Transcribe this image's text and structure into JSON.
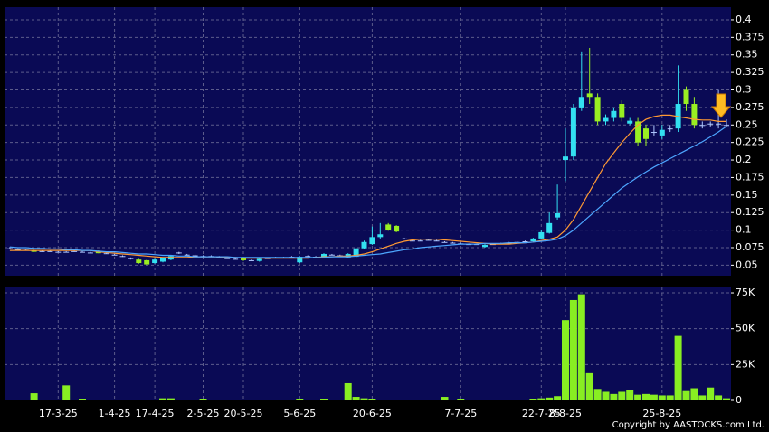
{
  "chart_data": [
    {
      "type": "candlestick",
      "open": [
        0.074,
        0.073,
        0.072,
        0.071,
        0.07,
        0.07,
        0.069,
        0.069,
        0.07,
        0.069,
        0.068,
        0.07,
        0.067,
        0.065,
        0.063,
        0.06,
        0.058,
        0.057,
        0.053,
        0.055,
        0.058,
        0.068,
        0.065,
        0.064,
        0.063,
        0.063,
        0.062,
        0.06,
        0.059,
        0.06,
        0.057,
        0.056,
        0.06,
        0.061,
        0.061,
        0.062,
        0.054,
        0.063,
        0.062,
        0.062,
        0.065,
        0.064,
        0.061,
        0.062,
        0.074,
        0.08,
        0.09,
        0.108,
        0.106,
        0.088,
        0.085,
        0.085,
        0.086,
        0.085,
        0.083,
        0.082,
        0.081,
        0.08,
        0.08,
        0.076,
        0.08,
        0.081,
        0.082,
        0.083,
        0.084,
        0.084,
        0.088,
        0.096,
        0.118,
        0.2,
        0.205,
        0.275,
        0.295,
        0.29,
        0.255,
        0.26,
        0.28,
        0.252,
        0.255,
        0.245,
        0.24,
        0.235,
        0.245,
        0.245,
        0.3,
        0.28,
        0.25,
        0.252,
        0.252,
        0.25
      ],
      "high": [
        0.076,
        0.074,
        0.073,
        0.072,
        0.071,
        0.071,
        0.07,
        0.07,
        0.071,
        0.07,
        0.069,
        0.071,
        0.068,
        0.066,
        0.064,
        0.061,
        0.059,
        0.058,
        0.059,
        0.061,
        0.064,
        0.069,
        0.066,
        0.065,
        0.064,
        0.064,
        0.063,
        0.061,
        0.06,
        0.061,
        0.058,
        0.06,
        0.061,
        0.062,
        0.062,
        0.063,
        0.063,
        0.064,
        0.063,
        0.067,
        0.066,
        0.065,
        0.067,
        0.075,
        0.085,
        0.105,
        0.11,
        0.11,
        0.107,
        0.089,
        0.086,
        0.086,
        0.087,
        0.086,
        0.084,
        0.083,
        0.082,
        0.081,
        0.081,
        0.08,
        0.081,
        0.082,
        0.083,
        0.084,
        0.085,
        0.089,
        0.1,
        0.125,
        0.165,
        0.245,
        0.28,
        0.355,
        0.36,
        0.295,
        0.265,
        0.275,
        0.285,
        0.26,
        0.26,
        0.25,
        0.25,
        0.25,
        0.25,
        0.335,
        0.305,
        0.29,
        0.255,
        0.255,
        0.3,
        0.258
      ],
      "low": [
        0.073,
        0.072,
        0.071,
        0.069,
        0.069,
        0.069,
        0.068,
        0.068,
        0.069,
        0.068,
        0.067,
        0.067,
        0.066,
        0.064,
        0.062,
        0.058,
        0.052,
        0.05,
        0.052,
        0.054,
        0.057,
        0.066,
        0.064,
        0.063,
        0.062,
        0.062,
        0.061,
        0.059,
        0.058,
        0.056,
        0.056,
        0.055,
        0.059,
        0.06,
        0.06,
        0.061,
        0.053,
        0.062,
        0.061,
        0.061,
        0.064,
        0.063,
        0.06,
        0.061,
        0.073,
        0.079,
        0.088,
        0.099,
        0.097,
        0.087,
        0.084,
        0.084,
        0.085,
        0.084,
        0.082,
        0.081,
        0.08,
        0.079,
        0.079,
        0.075,
        0.079,
        0.08,
        0.081,
        0.082,
        0.083,
        0.083,
        0.087,
        0.095,
        0.115,
        0.17,
        0.2,
        0.27,
        0.28,
        0.25,
        0.25,
        0.255,
        0.255,
        0.25,
        0.22,
        0.22,
        0.235,
        0.23,
        0.24,
        0.24,
        0.27,
        0.245,
        0.245,
        0.248,
        0.245,
        0.248
      ],
      "close": [
        0.074,
        0.073,
        0.072,
        0.069,
        0.07,
        0.07,
        0.069,
        0.069,
        0.07,
        0.069,
        0.068,
        0.067,
        0.067,
        0.065,
        0.063,
        0.06,
        0.053,
        0.051,
        0.058,
        0.06,
        0.063,
        0.068,
        0.065,
        0.064,
        0.063,
        0.063,
        0.062,
        0.06,
        0.059,
        0.057,
        0.057,
        0.059,
        0.06,
        0.061,
        0.061,
        0.062,
        0.062,
        0.063,
        0.062,
        0.066,
        0.065,
        0.064,
        0.066,
        0.074,
        0.083,
        0.09,
        0.094,
        0.1,
        0.098,
        0.088,
        0.085,
        0.085,
        0.086,
        0.085,
        0.083,
        0.082,
        0.081,
        0.08,
        0.08,
        0.079,
        0.08,
        0.081,
        0.082,
        0.083,
        0.084,
        0.088,
        0.097,
        0.11,
        0.124,
        0.205,
        0.275,
        0.29,
        0.29,
        0.255,
        0.26,
        0.27,
        0.26,
        0.256,
        0.225,
        0.23,
        0.24,
        0.243,
        0.245,
        0.28,
        0.28,
        0.25,
        0.25,
        0.252,
        0.252,
        0.25
      ],
      "up_color": "#33e0f0",
      "down_color": "#99ee22",
      "flat_color": "#b0c8ff",
      "series": [
        {
          "type": "line",
          "color": "#ff9933",
          "values": [
            0.071,
            0.071,
            0.071,
            0.071,
            0.071,
            0.071,
            0.071,
            0.071,
            0.071,
            0.071,
            0.071,
            0.069,
            0.068,
            0.067,
            0.066,
            0.065,
            0.064,
            0.063,
            0.062,
            0.061,
            0.061,
            0.061,
            0.061,
            0.062,
            0.062,
            0.062,
            0.062,
            0.061,
            0.061,
            0.06,
            0.06,
            0.06,
            0.06,
            0.06,
            0.06,
            0.06,
            0.06,
            0.06,
            0.061,
            0.062,
            0.062,
            0.063,
            0.063,
            0.064,
            0.066,
            0.069,
            0.073,
            0.077,
            0.081,
            0.084,
            0.086,
            0.087,
            0.087,
            0.087,
            0.086,
            0.085,
            0.084,
            0.083,
            0.082,
            0.081,
            0.08,
            0.08,
            0.08,
            0.081,
            0.082,
            0.083,
            0.085,
            0.087,
            0.09,
            0.1,
            0.115,
            0.135,
            0.155,
            0.175,
            0.195,
            0.21,
            0.225,
            0.238,
            0.25,
            0.258,
            0.262,
            0.264,
            0.264,
            0.262,
            0.26,
            0.258,
            0.257,
            0.257,
            0.255,
            0.255
          ]
        },
        {
          "type": "line",
          "color": "#4da6ff",
          "values": [
            0.076,
            0.075,
            0.075,
            0.074,
            0.074,
            0.073,
            0.073,
            0.072,
            0.072,
            0.071,
            0.071,
            0.07,
            0.069,
            0.069,
            0.068,
            0.067,
            0.066,
            0.066,
            0.065,
            0.064,
            0.064,
            0.063,
            0.063,
            0.062,
            0.062,
            0.062,
            0.062,
            0.062,
            0.061,
            0.061,
            0.061,
            0.061,
            0.061,
            0.061,
            0.061,
            0.061,
            0.061,
            0.061,
            0.061,
            0.061,
            0.062,
            0.062,
            0.062,
            0.063,
            0.064,
            0.065,
            0.066,
            0.068,
            0.07,
            0.072,
            0.073,
            0.075,
            0.076,
            0.077,
            0.078,
            0.079,
            0.08,
            0.08,
            0.08,
            0.081,
            0.081,
            0.081,
            0.082,
            0.082,
            0.082,
            0.083,
            0.084,
            0.085,
            0.087,
            0.092,
            0.1,
            0.11,
            0.12,
            0.13,
            0.14,
            0.15,
            0.16,
            0.168,
            0.176,
            0.183,
            0.19,
            0.196,
            0.202,
            0.208,
            0.214,
            0.22,
            0.226,
            0.233,
            0.24,
            0.248
          ]
        }
      ],
      "ylim": [
        0.035,
        0.418
      ],
      "yticks": [
        0.05,
        0.075,
        0.1,
        0.125,
        0.15,
        0.175,
        0.2,
        0.225,
        0.25,
        0.275,
        0.3,
        0.325,
        0.35,
        0.375,
        0.4
      ],
      "grid": true
    },
    {
      "type": "bar",
      "categories": [
        null,
        null,
        null,
        null,
        null,
        null,
        "17-3-25",
        null,
        null,
        null,
        null,
        null,
        null,
        "1-4-25",
        null,
        null,
        null,
        null,
        "17-4-25",
        null,
        null,
        null,
        null,
        null,
        "2-5-25",
        null,
        null,
        null,
        null,
        "20-5-25",
        null,
        null,
        null,
        null,
        null,
        null,
        "5-6-25",
        null,
        null,
        null,
        null,
        null,
        null,
        null,
        null,
        "20-6-25",
        null,
        null,
        null,
        null,
        null,
        null,
        null,
        null,
        null,
        null,
        "7-7-25",
        null,
        null,
        null,
        null,
        null,
        null,
        null,
        null,
        null,
        "22-7-25",
        null,
        null,
        "8-8-25",
        null,
        null,
        null,
        null,
        null,
        null,
        null,
        null,
        null,
        null,
        null,
        "25-8-25",
        null,
        null,
        null,
        null,
        null,
        null,
        null,
        null
      ],
      "values": [
        0,
        0,
        0,
        5000,
        0,
        0,
        0,
        10500,
        0,
        1000,
        0,
        0,
        0,
        0,
        0,
        0,
        0,
        0,
        0,
        1500,
        1500,
        0,
        0,
        0,
        800,
        0,
        0,
        0,
        0,
        0,
        0,
        0,
        0,
        0,
        0,
        0,
        800,
        0,
        0,
        800,
        0,
        0,
        12000,
        2500,
        1500,
        1200,
        0,
        0,
        0,
        0,
        0,
        0,
        0,
        0,
        2500,
        0,
        1000,
        0,
        0,
        0,
        0,
        0,
        0,
        0,
        0,
        1000,
        1500,
        2000,
        3000,
        56000,
        70000,
        74000,
        19000,
        8000,
        6000,
        4500,
        6000,
        7000,
        4000,
        4500,
        4000,
        3500,
        3500,
        45000,
        6500,
        8500,
        3500,
        9000,
        3500,
        1500
      ],
      "color": "#88ee22",
      "ylim": [
        0,
        78800
      ],
      "yticks": [
        0,
        {
          "value": 25000,
          "label": "25K"
        },
        {
          "value": 50000,
          "label": "50K"
        },
        {
          "value": 75000,
          "label": "75K"
        }
      ],
      "grid": true
    }
  ],
  "copyright": "Copyright by AASTOCKS.com Ltd."
}
